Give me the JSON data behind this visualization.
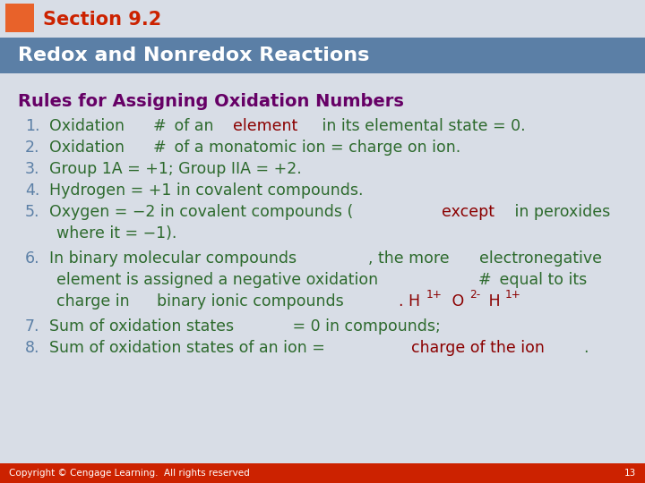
{
  "section_label": "Section 9.2",
  "title_bar_text": "Redox and Nonredox Reactions",
  "subtitle": "Rules for Assigning Oxidation Numbers",
  "rules": [
    {
      "num": "1.",
      "text_parts": [
        {
          "text": "Oxidation ",
          "color": "#006400",
          "bold": false
        },
        {
          "text": "#",
          "color": "#006400",
          "bold": false
        },
        {
          "text": " of an ",
          "color": "#006400",
          "bold": false
        },
        {
          "text": "element",
          "color": "#8B0000",
          "bold": false
        },
        {
          "text": " in its elemental state = 0.",
          "color": "#006400",
          "bold": false
        }
      ]
    },
    {
      "num": "2.",
      "text_parts": [
        {
          "text": "Oxidation ",
          "color": "#006400",
          "bold": false
        },
        {
          "text": "#",
          "color": "#006400",
          "bold": false
        },
        {
          "text": " of a monatomic ion = charge on ion.",
          "color": "#006400",
          "bold": false
        }
      ]
    },
    {
      "num": "3.",
      "text_parts": [
        {
          "text": "Group 1A = +1; Group IIA = +2.",
          "color": "#006400",
          "bold": false
        }
      ]
    },
    {
      "num": "4.",
      "text_parts": [
        {
          "text": "Hydrogen = +1 in covalent compounds.",
          "color": "#006400",
          "bold": false
        }
      ]
    },
    {
      "num": "5.",
      "text_parts": [
        {
          "text": "Oxygen = −2 in covalent compounds (",
          "color": "#006400",
          "bold": false
        },
        {
          "text": "except",
          "color": "#8B0000",
          "bold": false
        },
        {
          "text": " in peroxides where it = −1).",
          "color": "#006400",
          "bold": false
        }
      ]
    },
    {
      "num": "6.",
      "text_parts": [
        {
          "text": "In binary molecular compounds",
          "color": "#006400",
          "bold": false
        },
        {
          "text": ", the more ",
          "color": "#006400",
          "bold": false
        },
        {
          "text": "electronegative element",
          "color": "#006400",
          "bold": false
        },
        {
          "text": " is assigned a negative oxidation ",
          "color": "#006400",
          "bold": false
        },
        {
          "text": "#",
          "color": "#006400",
          "bold": false
        },
        {
          "text": " equal to its charge in ",
          "color": "#006400",
          "bold": false
        },
        {
          "text": "binary ionic compounds",
          "color": "#006400",
          "bold": false
        },
        {
          "text": ". H",
          "color": "#8B0000",
          "bold": false
        },
        {
          "text": "1+",
          "color": "#8B0000",
          "bold": false,
          "superscript": true
        },
        {
          "text": " O",
          "color": "#8B0000",
          "bold": false
        },
        {
          "text": "2-",
          "color": "#8B0000",
          "bold": false,
          "superscript": true
        },
        {
          "text": " H",
          "color": "#8B0000",
          "bold": false
        },
        {
          "text": "1+",
          "color": "#8B0000",
          "bold": false,
          "superscript": true
        }
      ]
    },
    {
      "num": "7.",
      "text_parts": [
        {
          "text": "Sum of oxidation states",
          "color": "#006400",
          "bold": false
        },
        {
          "text": " = 0 in compounds;",
          "color": "#006400",
          "bold": false
        }
      ]
    },
    {
      "num": "8.",
      "text_parts": [
        {
          "text": "Sum of oxidation states of an ion = ",
          "color": "#006400",
          "bold": false
        },
        {
          "text": "charge of the ion",
          "color": "#8B0000",
          "bold": false
        },
        {
          "text": ".",
          "color": "#006400",
          "bold": false
        }
      ]
    }
  ],
  "bg_color": "#d8dde6",
  "header_bg": "#5b7fa6",
  "top_strip_bg": "#d8dde6",
  "orange_box": "#e8622a",
  "section_text_color": "#cc2200",
  "title_text_color": "#ffffff",
  "subtitle_color": "#660066",
  "footer_bg": "#cc2200",
  "footer_text": "Copyright © Cengage Learning.  All rights reserved",
  "footer_num": "13",
  "num_color": "#5b7fa6"
}
